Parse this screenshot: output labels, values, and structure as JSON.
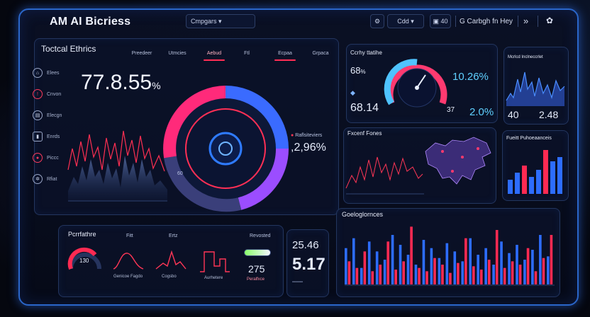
{
  "app": {
    "title": "AM AI Bicriess"
  },
  "topbar": {
    "search_value": "Cmpgars",
    "dropdown_label": "Cdd",
    "action_label": "⭐",
    "right_label": "G Carbgh fn Hey",
    "expand_label": "»"
  },
  "main_panel": {
    "title": "Toctcal Ethrics",
    "tabs": [
      "Preedeer",
      "Utmcies",
      "Aebud",
      "Ftl",
      "Ecpaa",
      "Grpaca"
    ],
    "active_tab": 2,
    "big_value": "77.8.55",
    "big_unit": "%",
    "ring_label": "Raflsiteviers",
    "ring_value": "2,96%",
    "center_small": "60"
  },
  "nav": {
    "items": [
      {
        "label": "Elees",
        "icon": "home-icon"
      },
      {
        "label": "Cnvon",
        "icon": "alert-icon"
      },
      {
        "label": "Elecgn",
        "icon": "chart-icon"
      },
      {
        "label": "Enrds",
        "icon": "lock-icon"
      },
      {
        "label": "Piccc",
        "icon": "pin-icon"
      },
      {
        "label": "Rfiat",
        "icon": "gear-icon"
      }
    ]
  },
  "gauge_panel": {
    "title": "Ccrhy ttatihe",
    "left_top": "68",
    "left_top_unit": "%",
    "left_bottom": "68.14",
    "right_top": "10.26%",
    "right_bottom_prefix": "37",
    "right_bottom": "2.0%"
  },
  "map_panel": {
    "title": "Fxcenf Fones"
  },
  "topright_panel": {
    "title": "Mcrlcd Inclneccrlet",
    "left_value": "40",
    "right_value": "2.48"
  },
  "midright_panel": {
    "title": "Fueitt Puhoeaanceis"
  },
  "bottom_left": {
    "title": "Pcrrfathre",
    "gauge_value": "130",
    "labels": [
      "Fitt",
      "Ertz",
      "Revosted"
    ],
    "mid_value": "275",
    "captions": [
      "Genicoe Fagdo",
      "Cogsbo",
      "Aurhetere",
      "Peralfxce"
    ]
  },
  "bottom_numbers": {
    "top": "25.46",
    "bottom": "5.17"
  },
  "bottom_right": {
    "title": "Goeloglornces",
    "chart_data": {
      "type": "bar",
      "series": [
        {
          "values": [
            22,
            28,
            10,
            26,
            20,
            15,
            30,
            24,
            18,
            12,
            27,
            22,
            16,
            25,
            20,
            14,
            28,
            18,
            22,
            12,
            26,
            19,
            24,
            15,
            21,
            30,
            17
          ]
        },
        {
          "values": [
            14,
            10,
            20,
            8,
            12,
            26,
            9,
            14,
            35,
            10,
            8,
            16,
            12,
            7,
            13,
            28,
            11,
            9,
            15,
            33,
            10,
            14,
            12,
            22,
            8,
            16,
            30
          ]
        }
      ],
      "colors": [
        "#2d6dff",
        "#ff2a52"
      ]
    }
  }
}
